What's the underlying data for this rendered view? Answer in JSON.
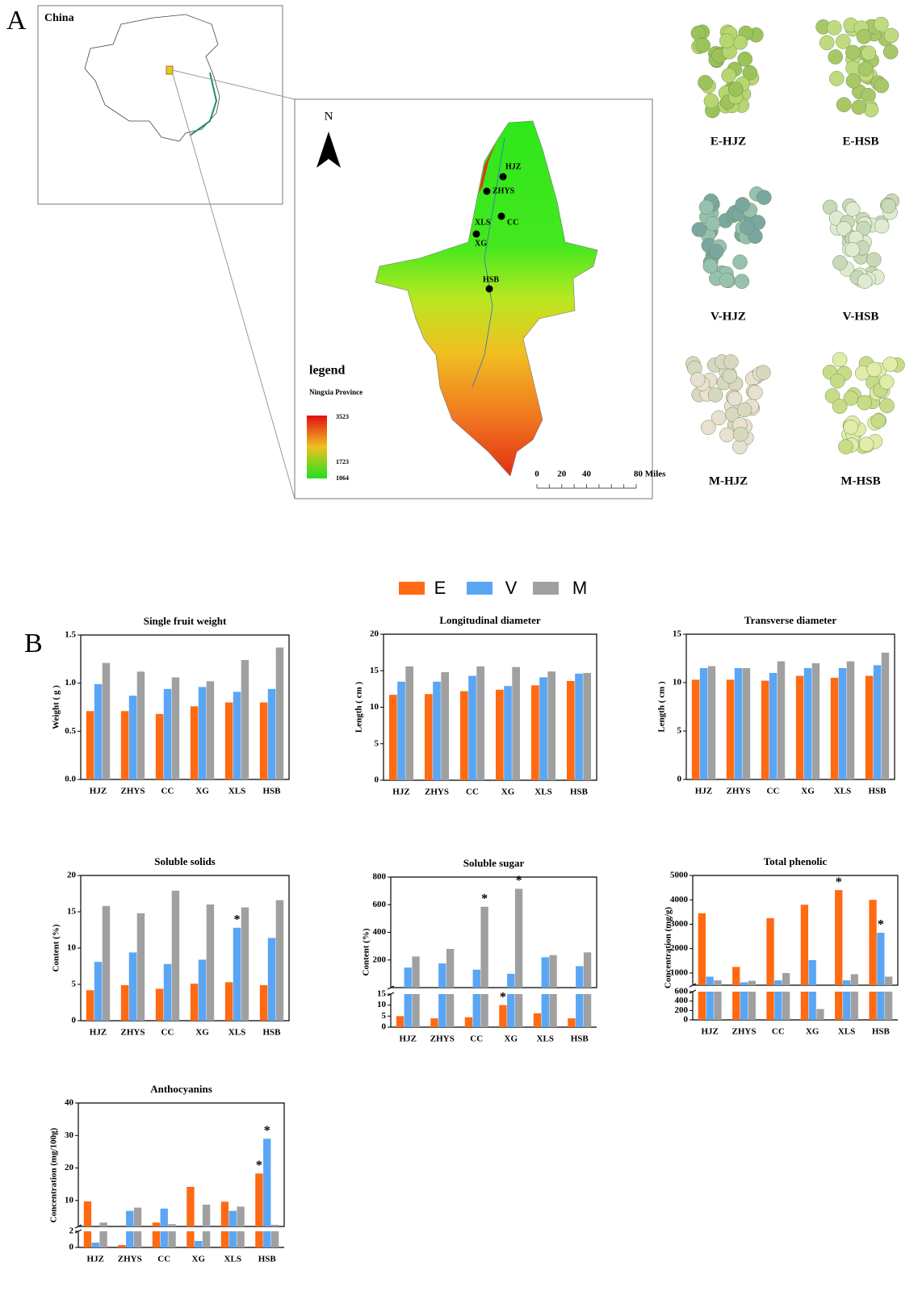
{
  "panel_a": {
    "label": "A",
    "inset_title": "China",
    "north": "N",
    "sites": [
      "HJZ",
      "ZHYS",
      "CC",
      "XLS",
      "XG",
      "HSB"
    ],
    "legend": {
      "title": "legend",
      "subtitle": "Ningxia Province",
      "values": [
        3523,
        1723,
        1064
      ]
    },
    "scale_ticks": [
      0,
      20,
      40,
      {
        "value": 80,
        "label": "80 Miles"
      }
    ],
    "photos": [
      "E-HJZ",
      "E-HSB",
      "V-HJZ",
      "V-HSB",
      "M-HJZ",
      "M-HSB"
    ]
  },
  "panel_b": {
    "label": "B"
  },
  "chart_data": [
    {
      "type": "bar",
      "title": "Single fruit weight",
      "y_label": "Weight ( g )",
      "categories": [
        "HJZ",
        "ZHYS",
        "CC",
        "XG",
        "XLS",
        "HSB"
      ],
      "ylim": [
        0,
        1.5
      ],
      "yticks": [
        {
          "value": 0,
          "label": "0.0"
        },
        0.5,
        {
          "value": 1,
          "label": "1.0"
        },
        1.5
      ],
      "series": [
        {
          "name": "E",
          "color": "#ff6a13",
          "values": [
            0.71,
            0.71,
            0.68,
            0.76,
            0.8,
            0.8
          ]
        },
        {
          "name": "V",
          "color": "#5aa6f5",
          "values": [
            0.99,
            0.87,
            0.94,
            0.96,
            0.91,
            0.94
          ]
        },
        {
          "name": "M",
          "color": "#a0a0a0",
          "values": [
            1.21,
            1.12,
            1.06,
            1.02,
            1.24,
            1.37
          ]
        }
      ]
    },
    {
      "type": "bar",
      "title": "Longitudinal diameter",
      "y_label": "Length ( cm )",
      "categories": [
        "HJZ",
        "ZHYS",
        "CC",
        "XG",
        "XLS",
        "HSB"
      ],
      "ylim": [
        0,
        20
      ],
      "yticks": [
        0,
        5,
        10,
        15,
        20
      ],
      "series": [
        {
          "name": "E",
          "color": "#ff6a13",
          "values": [
            11.7,
            11.8,
            12.2,
            12.4,
            13.0,
            13.6
          ]
        },
        {
          "name": "V",
          "color": "#5aa6f5",
          "values": [
            13.5,
            13.5,
            14.3,
            12.9,
            14.1,
            14.6
          ]
        },
        {
          "name": "M",
          "color": "#a0a0a0",
          "values": [
            15.6,
            14.8,
            15.6,
            15.5,
            14.9,
            14.7
          ]
        }
      ]
    },
    {
      "type": "bar",
      "title": "Transverse diameter",
      "y_label": "Length ( cm )",
      "categories": [
        "HJZ",
        "ZHYS",
        "CC",
        "XG",
        "XLS",
        "HSB"
      ],
      "ylim": [
        0,
        15
      ],
      "yticks": [
        0,
        5,
        10,
        15
      ],
      "series": [
        {
          "name": "E",
          "color": "#ff6a13",
          "values": [
            10.3,
            10.3,
            10.2,
            10.7,
            10.5,
            10.7
          ]
        },
        {
          "name": "V",
          "color": "#5aa6f5",
          "values": [
            11.5,
            11.5,
            11.0,
            11.5,
            11.5,
            11.8
          ]
        },
        {
          "name": "M",
          "color": "#a0a0a0",
          "values": [
            11.7,
            11.5,
            12.2,
            12.0,
            12.2,
            13.1
          ]
        }
      ]
    },
    {
      "type": "bar",
      "title": "Soluble solids",
      "y_label": "Content (%)",
      "categories": [
        "HJZ",
        "ZHYS",
        "CC",
        "XG",
        "XLS",
        "HSB"
      ],
      "ylim": [
        0,
        20
      ],
      "yticks": [
        0,
        5,
        10,
        15,
        20
      ],
      "series": [
        {
          "name": "E",
          "color": "#ff6a13",
          "values": [
            4.2,
            4.9,
            4.4,
            5.1,
            5.3,
            4.9
          ]
        },
        {
          "name": "V",
          "color": "#5aa6f5",
          "values": [
            8.1,
            9.4,
            7.8,
            8.4,
            12.8,
            11.4
          ],
          "significance": [
            null,
            null,
            null,
            null,
            "*",
            null
          ]
        },
        {
          "name": "M",
          "color": "#a0a0a0",
          "values": [
            15.8,
            14.8,
            17.9,
            16.0,
            15.6,
            16.6
          ]
        }
      ]
    },
    {
      "type": "bar",
      "title": "Soluble sugar",
      "y_label": "Content (%)",
      "categories": [
        "HJZ",
        "ZHYS",
        "CC",
        "XG",
        "XLS",
        "HSB"
      ],
      "ylim": [
        0,
        800
      ],
      "yticks": [
        200,
        400,
        600,
        800
      ],
      "lower_ylim": [
        0,
        15
      ],
      "lower_yticks": [
        0,
        5,
        10,
        15
      ],
      "series": [
        {
          "name": "E",
          "color": "#ff6a13",
          "values": [
            5,
            4,
            4.5,
            10,
            6.3,
            4
          ],
          "significance": [
            null,
            null,
            null,
            "*",
            null,
            null
          ]
        },
        {
          "name": "V",
          "color": "#5aa6f5",
          "values": [
            145,
            175,
            130,
            100,
            220,
            155
          ]
        },
        {
          "name": "M",
          "color": "#a0a0a0",
          "values": [
            225,
            280,
            585,
            715,
            235,
            255
          ],
          "significance": [
            null,
            null,
            "*",
            "*",
            null,
            null
          ]
        }
      ]
    },
    {
      "type": "bar",
      "title": "Total phenolic",
      "y_label": "Concentration (mg/g)",
      "categories": [
        "HJZ",
        "ZHYS",
        "CC",
        "XG",
        "XLS",
        "HSB"
      ],
      "ylim": [
        500,
        5000
      ],
      "yticks": [
        1000,
        2000,
        3000,
        4000,
        5000
      ],
      "lower_ylim": [
        0,
        600
      ],
      "lower_yticks": [
        0,
        200,
        400,
        600
      ],
      "series": [
        {
          "name": "E",
          "color": "#ff6a13",
          "values": [
            3450,
            1250,
            3250,
            3800,
            4400,
            4000
          ],
          "significance": [
            null,
            null,
            null,
            null,
            "*",
            null
          ]
        },
        {
          "name": "V",
          "color": "#5aa6f5",
          "values": [
            850,
            620,
            700,
            1530,
            700,
            2650
          ],
          "significance": [
            null,
            null,
            null,
            null,
            null,
            "*"
          ]
        },
        {
          "name": "M",
          "color": "#a0a0a0",
          "values": [
            700,
            680,
            1000,
            230,
            950,
            850
          ]
        }
      ]
    },
    {
      "type": "bar",
      "title": "Anthocyanins",
      "y_label": "Concentration (mg/100g)",
      "categories": [
        "HJZ",
        "ZHYS",
        "CC",
        "XG",
        "XLS",
        "HSB"
      ],
      "ylim": [
        2,
        40
      ],
      "yticks": [
        10,
        20,
        30,
        40
      ],
      "lower_ylim": [
        0,
        2
      ],
      "lower_yticks": [
        0,
        2
      ],
      "series": [
        {
          "name": "E",
          "color": "#ff6a13",
          "values": [
            9.7,
            0.3,
            3.2,
            14.2,
            9.6,
            18.3
          ],
          "significance": [
            null,
            null,
            null,
            null,
            null,
            "*"
          ]
        },
        {
          "name": "V",
          "color": "#5aa6f5",
          "values": [
            0.6,
            6.8,
            7.5,
            0.8,
            6.8,
            29
          ],
          "significance": [
            null,
            null,
            null,
            null,
            null,
            "*"
          ]
        },
        {
          "name": "M",
          "color": "#a0a0a0",
          "values": [
            3.2,
            7.8,
            2.7,
            8.7,
            8.1,
            2.5
          ]
        }
      ]
    }
  ]
}
